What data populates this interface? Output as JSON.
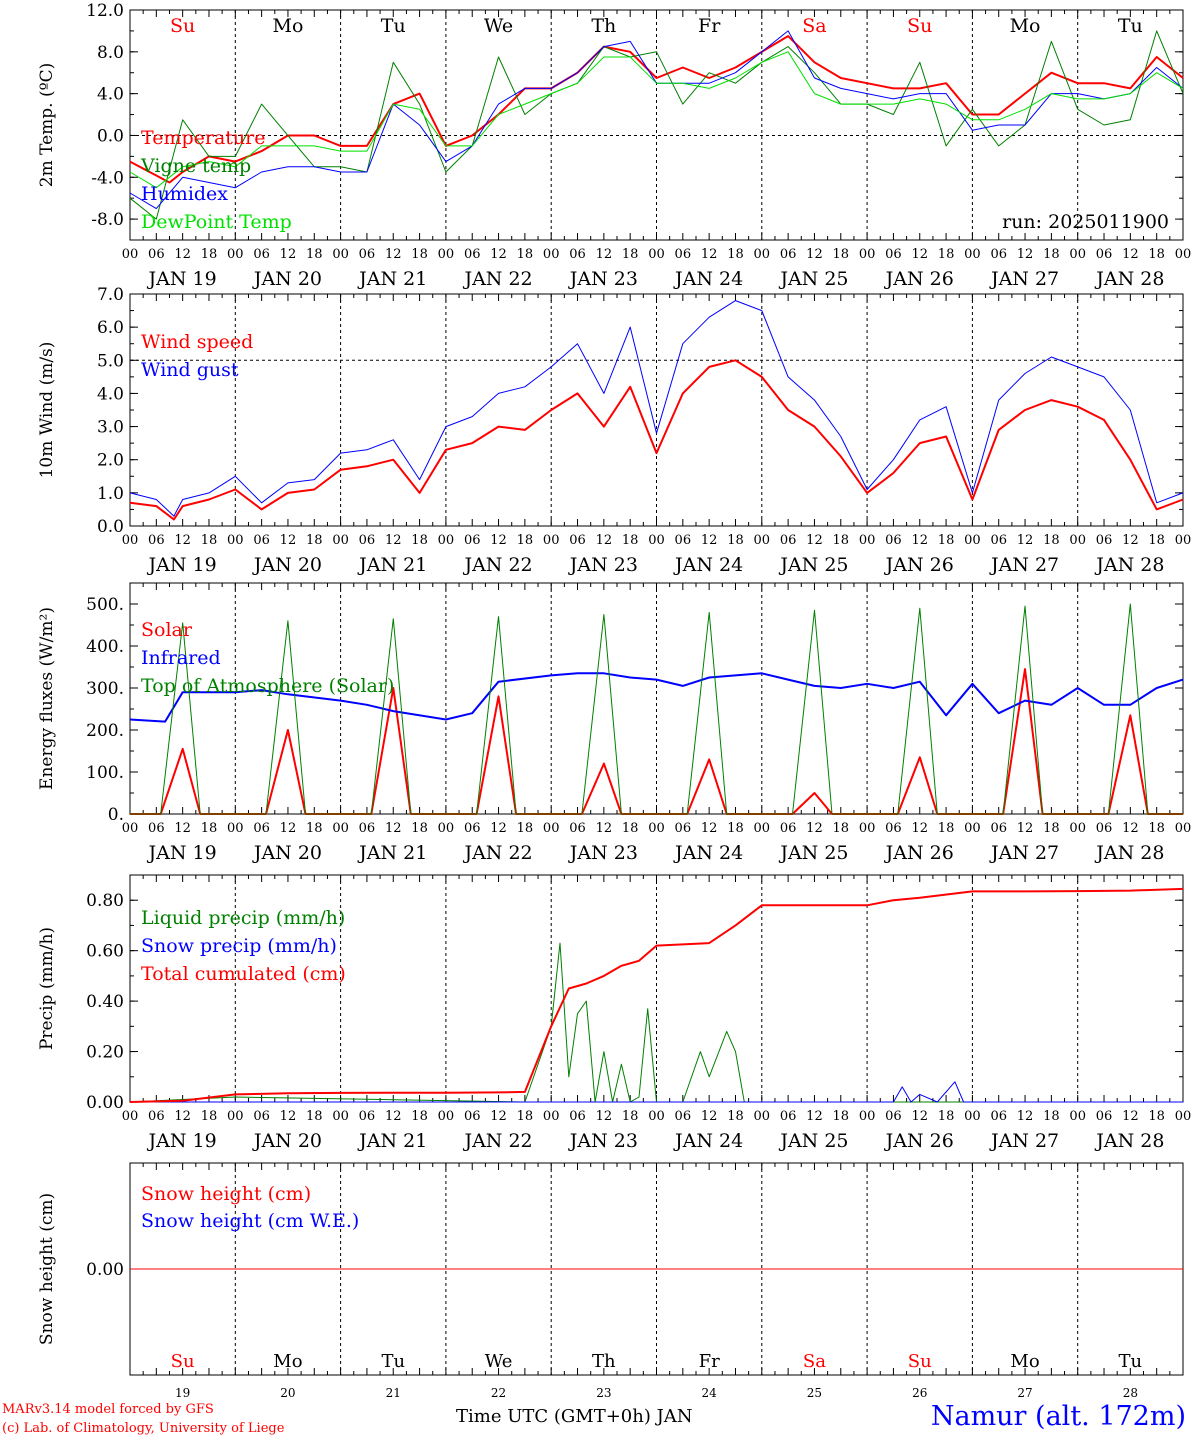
{
  "footer": {
    "model_line": "MARv3.14 model forced by GFS",
    "credit_line": "(c) Lab. of Climatology, University of Liege",
    "axis_title": "Time UTC (GMT+0h) JAN",
    "station": "Namur (alt. 172m)"
  },
  "day_names": [
    "Su",
    "Mo",
    "Tu",
    "We",
    "Th",
    "Fr",
    "Sa",
    "Su",
    "Mo",
    "Tu"
  ],
  "day_name_colors": [
    "#ff0000",
    "#000000",
    "#000000",
    "#000000",
    "#000000",
    "#000000",
    "#ff0000",
    "#ff0000",
    "#000000",
    "#000000"
  ],
  "date_labels": [
    "JAN 19",
    "JAN 20",
    "JAN 21",
    "JAN 22",
    "JAN 23",
    "JAN 24",
    "JAN 25",
    "JAN 26",
    "JAN 27",
    "JAN 28"
  ],
  "bottom_day_numbers": [
    "19",
    "20",
    "21",
    "22",
    "23",
    "24",
    "25",
    "26",
    "27",
    "28"
  ],
  "hour_tick_labels": [
    "00",
    "06",
    "12",
    "18"
  ],
  "colors": {
    "red": "#ff0000",
    "green": "#008000",
    "blue": "#0000ff",
    "lightgreen": "#00e000"
  },
  "chart_data": [
    {
      "type": "line",
      "ylabel": "2m Temp. (ºC)",
      "ylim": [
        -10,
        12
      ],
      "yticks": [
        -8,
        -4,
        0,
        4,
        8,
        12
      ],
      "ytick_labels": [
        "-8.0",
        "-4.0",
        "0.0",
        "4.0",
        "8.0",
        "12.0"
      ],
      "ref_line": 0,
      "annotation": "run: 2025011900",
      "x_unit": "hours since 00 JAN 19",
      "xlim": [
        0,
        240
      ],
      "series": [
        {
          "name": "Temperature",
          "color": "#ff0000",
          "width": 2,
          "x": [
            0,
            9,
            12,
            18,
            24,
            30,
            36,
            42,
            48,
            54,
            60,
            66,
            72,
            78,
            84,
            90,
            96,
            102,
            108,
            114,
            120,
            126,
            132,
            138,
            144,
            150,
            156,
            162,
            168,
            174,
            180,
            186,
            192,
            198,
            204,
            210,
            216,
            222,
            228,
            234,
            240
          ],
          "y": [
            -2.5,
            -4.5,
            -3.5,
            -2,
            -2.5,
            -1.5,
            0,
            0,
            -1,
            -1,
            3,
            4,
            -1,
            0,
            2,
            4.5,
            4.5,
            6,
            8.5,
            8,
            5.5,
            6.5,
            5.5,
            6.5,
            8,
            9.5,
            7,
            5.5,
            5,
            4.5,
            4.5,
            5,
            2,
            2,
            4,
            6,
            5,
            5,
            4.5,
            7.5,
            5.5
          ]
        },
        {
          "name": "Vigne temp",
          "color": "#008000",
          "width": 1,
          "x": [
            0,
            6,
            12,
            18,
            24,
            30,
            36,
            42,
            48,
            54,
            60,
            66,
            72,
            78,
            84,
            90,
            96,
            102,
            108,
            114,
            120,
            126,
            132,
            138,
            144,
            150,
            156,
            162,
            168,
            174,
            180,
            186,
            192,
            198,
            204,
            210,
            216,
            222,
            228,
            234,
            240
          ],
          "y": [
            -6,
            -8,
            1.5,
            -2,
            -2,
            3,
            0,
            -3,
            -3,
            -3.5,
            7,
            3,
            -3.5,
            -1,
            7.5,
            2,
            4,
            5,
            8.5,
            7.5,
            8,
            3,
            6,
            5,
            7,
            8.5,
            6,
            3,
            3,
            2,
            7,
            -1,
            2.5,
            -1,
            1,
            9,
            2.5,
            1,
            1.5,
            10,
            4
          ]
        },
        {
          "name": "Humidex",
          "color": "#0000ff",
          "width": 1,
          "x": [
            0,
            6,
            12,
            18,
            24,
            30,
            36,
            42,
            48,
            54,
            60,
            66,
            72,
            78,
            84,
            90,
            96,
            102,
            108,
            114,
            120,
            126,
            132,
            138,
            144,
            150,
            156,
            162,
            168,
            174,
            180,
            186,
            192,
            198,
            204,
            210,
            216,
            222,
            228,
            234,
            240
          ],
          "y": [
            -5.5,
            -7,
            -4,
            -4.5,
            -5,
            -3.5,
            -3,
            -3,
            -3.5,
            -3.5,
            3,
            1,
            -2.5,
            -1,
            3,
            4.5,
            4.5,
            6,
            8.5,
            9,
            5,
            5,
            5,
            6,
            8,
            10,
            5.5,
            4.5,
            4,
            3.5,
            4,
            4,
            0.5,
            1,
            1,
            4,
            4,
            3.5,
            4,
            6.5,
            4.5
          ]
        },
        {
          "name": "DewPoint Temp",
          "color": "#00e000",
          "width": 1,
          "x": [
            0,
            6,
            12,
            18,
            24,
            30,
            36,
            42,
            48,
            54,
            60,
            66,
            72,
            78,
            84,
            90,
            96,
            102,
            108,
            114,
            120,
            126,
            132,
            138,
            144,
            150,
            156,
            162,
            168,
            174,
            180,
            186,
            192,
            198,
            204,
            210,
            216,
            222,
            228,
            234,
            240
          ],
          "y": [
            -3.5,
            -5,
            -3,
            -2.5,
            -3,
            -1,
            -1,
            -1,
            -1.5,
            -1.5,
            3,
            2.5,
            -1,
            -1,
            2,
            3,
            4,
            5,
            7.5,
            7.5,
            5,
            5,
            4.5,
            5.5,
            7,
            8,
            4,
            3,
            3,
            3,
            3.5,
            3,
            1.5,
            1.5,
            2.5,
            4,
            3.5,
            3.5,
            4,
            6,
            4.5
          ]
        }
      ]
    },
    {
      "type": "line",
      "ylabel": "10m Wind (m/s)",
      "ylim": [
        0,
        7
      ],
      "yticks": [
        0,
        1,
        2,
        3,
        4,
        5,
        6,
        7
      ],
      "ytick_labels": [
        "0.0",
        "1.0",
        "2.0",
        "3.0",
        "4.0",
        "5.0",
        "6.0",
        "7.0"
      ],
      "ref_line": 5,
      "x_unit": "hours since 00 JAN 19",
      "xlim": [
        0,
        240
      ],
      "series": [
        {
          "name": "Wind speed",
          "color": "#ff0000",
          "width": 2,
          "x": [
            0,
            6,
            10,
            12,
            18,
            24,
            30,
            36,
            42,
            48,
            54,
            60,
            66,
            72,
            78,
            84,
            90,
            96,
            102,
            108,
            114,
            120,
            126,
            132,
            138,
            144,
            150,
            156,
            162,
            168,
            174,
            180,
            186,
            192,
            198,
            204,
            210,
            216,
            222,
            228,
            234,
            240
          ],
          "y": [
            0.7,
            0.6,
            0.2,
            0.6,
            0.8,
            1.1,
            0.5,
            1,
            1.1,
            1.7,
            1.8,
            2,
            1,
            2.3,
            2.5,
            3,
            2.9,
            3.5,
            4,
            3,
            4.2,
            2.2,
            4,
            4.8,
            5,
            4.5,
            3.5,
            3,
            2.1,
            1,
            1.6,
            2.5,
            2.7,
            0.8,
            2.9,
            3.5,
            3.8,
            3.6,
            3.2,
            2,
            0.5,
            0.8
          ]
        },
        {
          "name": "Wind gust",
          "color": "#0000ff",
          "width": 1,
          "x": [
            0,
            6,
            10,
            12,
            18,
            24,
            30,
            36,
            42,
            48,
            54,
            60,
            66,
            72,
            78,
            84,
            90,
            96,
            102,
            108,
            114,
            120,
            126,
            132,
            138,
            144,
            150,
            156,
            162,
            168,
            174,
            180,
            186,
            192,
            198,
            204,
            210,
            216,
            222,
            228,
            234,
            240
          ],
          "y": [
            1,
            0.8,
            0.3,
            0.8,
            1,
            1.5,
            0.7,
            1.3,
            1.4,
            2.2,
            2.3,
            2.6,
            1.4,
            3,
            3.3,
            4,
            4.2,
            4.8,
            5.5,
            4,
            6,
            2.8,
            5.5,
            6.3,
            6.8,
            6.5,
            4.5,
            3.8,
            2.7,
            1.1,
            2,
            3.2,
            3.6,
            1,
            3.8,
            4.6,
            5.1,
            4.8,
            4.5,
            3.5,
            0.7,
            1
          ]
        }
      ]
    },
    {
      "type": "line",
      "ylabel": "Energy fluxes (W/m²)",
      "ylim": [
        0,
        550
      ],
      "yticks": [
        0,
        100,
        200,
        300,
        400,
        500
      ],
      "ytick_labels": [
        "0.",
        "100.",
        "200.",
        "300.",
        "400.",
        "500."
      ],
      "x_unit": "hours since 00 JAN 19",
      "xlim": [
        0,
        240
      ],
      "series": [
        {
          "name": "Solar",
          "color": "#ff0000",
          "width": 2,
          "x": [
            0,
            7,
            12,
            16,
            24,
            31,
            36,
            40,
            48,
            55,
            60,
            64,
            72,
            79,
            84,
            88,
            96,
            103,
            108,
            112,
            120,
            127,
            132,
            136,
            144,
            151,
            156,
            160,
            168,
            175,
            180,
            184,
            192,
            199,
            204,
            208,
            216,
            223,
            228,
            232,
            240
          ],
          "y": [
            0,
            0,
            155,
            0,
            0,
            0,
            200,
            0,
            0,
            0,
            300,
            0,
            0,
            0,
            280,
            0,
            0,
            0,
            120,
            0,
            0,
            0,
            130,
            0,
            0,
            0,
            50,
            0,
            0,
            0,
            135,
            0,
            0,
            0,
            345,
            0,
            0,
            0,
            235,
            0,
            0
          ]
        },
        {
          "name": "Infrared",
          "color": "#0000ff",
          "width": 2,
          "x": [
            0,
            8,
            12,
            24,
            30,
            36,
            48,
            54,
            60,
            72,
            78,
            84,
            96,
            102,
            108,
            114,
            120,
            126,
            132,
            138,
            144,
            150,
            156,
            162,
            168,
            174,
            180,
            186,
            192,
            198,
            204,
            210,
            216,
            222,
            228,
            234,
            240
          ],
          "y": [
            225,
            220,
            290,
            290,
            295,
            285,
            270,
            260,
            245,
            225,
            240,
            315,
            330,
            335,
            335,
            325,
            320,
            305,
            325,
            330,
            335,
            320,
            305,
            300,
            310,
            300,
            315,
            235,
            310,
            240,
            270,
            260,
            300,
            260,
            260,
            300,
            320
          ]
        },
        {
          "name": "Top of Atmosphere (Solar)",
          "color": "#008000",
          "width": 1,
          "x": [
            0,
            7,
            12,
            16,
            24,
            31,
            36,
            40,
            48,
            55,
            60,
            64,
            72,
            79,
            84,
            88,
            96,
            103,
            108,
            112,
            120,
            127,
            132,
            136,
            144,
            151,
            156,
            160,
            168,
            175,
            180,
            184,
            192,
            199,
            204,
            208,
            216,
            223,
            228,
            232,
            240
          ],
          "y": [
            0,
            0,
            455,
            0,
            0,
            0,
            460,
            0,
            0,
            0,
            465,
            0,
            0,
            0,
            470,
            0,
            0,
            0,
            475,
            0,
            0,
            0,
            480,
            0,
            0,
            0,
            485,
            0,
            0,
            0,
            490,
            0,
            0,
            0,
            495,
            0,
            0,
            0,
            500,
            0,
            0
          ]
        }
      ]
    },
    {
      "type": "line",
      "ylabel": "Precip (mm/h)",
      "ylim": [
        0,
        0.9
      ],
      "yticks": [
        0,
        0.2,
        0.4,
        0.6,
        0.8
      ],
      "ytick_labels": [
        "0.00",
        "0.20",
        "0.40",
        "0.60",
        "0.80"
      ],
      "x_unit": "hours since 00 JAN 19",
      "xlim": [
        0,
        240
      ],
      "series": [
        {
          "name": "Liquid precip (mm/h)",
          "color": "#008000",
          "width": 1,
          "x": [
            0,
            24,
            90,
            96,
            98,
            100,
            102,
            104,
            106,
            108,
            110,
            112,
            114,
            116,
            118,
            120,
            122,
            124,
            126,
            130,
            132,
            136,
            138,
            140,
            144,
            240
          ],
          "y": [
            0,
            0.02,
            0,
            0.3,
            0.63,
            0.1,
            0.35,
            0.4,
            0,
            0.2,
            0,
            0.15,
            0,
            0.02,
            0.37,
            0,
            0,
            0,
            0,
            0.2,
            0.1,
            0.28,
            0.2,
            0,
            0,
            0
          ]
        },
        {
          "name": "Snow precip (mm/h)",
          "color": "#0000ff",
          "width": 1,
          "x": [
            0,
            174,
            176,
            178,
            180,
            184,
            188,
            190,
            192,
            240
          ],
          "y": [
            0,
            0,
            0.06,
            0,
            0.03,
            0,
            0.08,
            0,
            0,
            0
          ]
        },
        {
          "name": "Total cumulated (cm)",
          "color": "#ff0000",
          "width": 2,
          "x": [
            0,
            12,
            24,
            36,
            48,
            60,
            72,
            84,
            90,
            96,
            100,
            104,
            108,
            112,
            116,
            120,
            132,
            138,
            144,
            156,
            168,
            174,
            180,
            192,
            204,
            216,
            228,
            240
          ],
          "y": [
            0,
            0.005,
            0.03,
            0.035,
            0.036,
            0.037,
            0.037,
            0.038,
            0.04,
            0.3,
            0.45,
            0.47,
            0.5,
            0.54,
            0.56,
            0.62,
            0.63,
            0.7,
            0.78,
            0.78,
            0.78,
            0.8,
            0.81,
            0.835,
            0.835,
            0.836,
            0.838,
            0.845
          ]
        }
      ]
    },
    {
      "type": "line",
      "ylabel": "Snow height (cm)",
      "ylim": [
        -1,
        1
      ],
      "yticks": [
        0
      ],
      "ytick_labels": [
        "0.00"
      ],
      "x_unit": "hours since 00 JAN 19",
      "xlim": [
        0,
        240
      ],
      "series": [
        {
          "name": "Snow height (cm)",
          "color": "#ff0000",
          "width": 1,
          "x": [
            0,
            240
          ],
          "y": [
            0,
            0
          ]
        },
        {
          "name": "Snow height (cm W.E.)",
          "color": "#0000ff",
          "width": 1,
          "x": [],
          "y": []
        }
      ]
    }
  ]
}
